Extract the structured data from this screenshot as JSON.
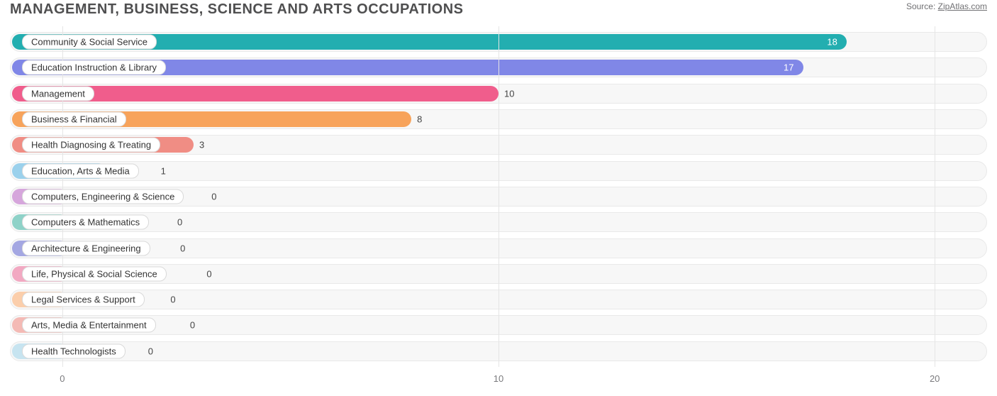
{
  "header": {
    "title": "MANAGEMENT, BUSINESS, SCIENCE AND ARTS OCCUPATIONS",
    "source_prefix": "Source: ",
    "source_link": "ZipAtlas.com"
  },
  "chart": {
    "type": "bar-horizontal",
    "background_color": "#ffffff",
    "track_bg": "#f7f7f7",
    "track_border": "#e9e9e9",
    "grid_color": "#e5e5e5",
    "title_color": "#4f4f50",
    "axis_label_color": "#7a7a7d",
    "value_label_color": "#444444",
    "pill_bg": "#ffffff",
    "pill_border": "#d9d9d9",
    "x_axis": {
      "min": -1.2,
      "max": 21.2,
      "ticks": [
        0,
        10,
        20
      ],
      "tick_labels": [
        "0",
        "10",
        "20"
      ]
    },
    "font_family": "Arial",
    "title_fontsize": 20,
    "pill_fontsize": 13,
    "value_fontsize": 13,
    "axis_fontsize": 13,
    "bars": [
      {
        "label": "Community & Social Service",
        "value": 18,
        "value_text": "18",
        "color": "#23aeb0",
        "value_inside": true
      },
      {
        "label": "Education Instruction & Library",
        "value": 17,
        "value_text": "17",
        "color": "#8087e7",
        "value_inside": true
      },
      {
        "label": "Management",
        "value": 10,
        "value_text": "10",
        "color": "#f05d8c",
        "value_inside": false
      },
      {
        "label": "Business & Financial",
        "value": 8,
        "value_text": "8",
        "color": "#f7a35b",
        "value_inside": false
      },
      {
        "label": "Health Diagnosing & Treating",
        "value": 3,
        "value_text": "3",
        "color": "#f08d84",
        "value_inside": false
      },
      {
        "label": "Education, Arts & Media",
        "value": 1,
        "value_text": "1",
        "color": "#9bd1ec",
        "value_inside": false
      },
      {
        "label": "Computers, Engineering & Science",
        "value": 0,
        "value_text": "0",
        "color": "#d6a6dc",
        "value_inside": false
      },
      {
        "label": "Computers & Mathematics",
        "value": 0,
        "value_text": "0",
        "color": "#8ed2c8",
        "value_inside": false
      },
      {
        "label": "Architecture & Engineering",
        "value": 0,
        "value_text": "0",
        "color": "#a4a7e2",
        "value_inside": false
      },
      {
        "label": "Life, Physical & Social Science",
        "value": 0,
        "value_text": "0",
        "color": "#f2a9c2",
        "value_inside": false
      },
      {
        "label": "Legal Services & Support",
        "value": 0,
        "value_text": "0",
        "color": "#fbceab",
        "value_inside": false
      },
      {
        "label": "Arts, Media & Entertainment",
        "value": 0,
        "value_text": "0",
        "color": "#f4bab5",
        "value_inside": false
      },
      {
        "label": "Health Technologists",
        "value": 0,
        "value_text": "0",
        "color": "#c7e4f0",
        "value_inside": false
      }
    ]
  }
}
